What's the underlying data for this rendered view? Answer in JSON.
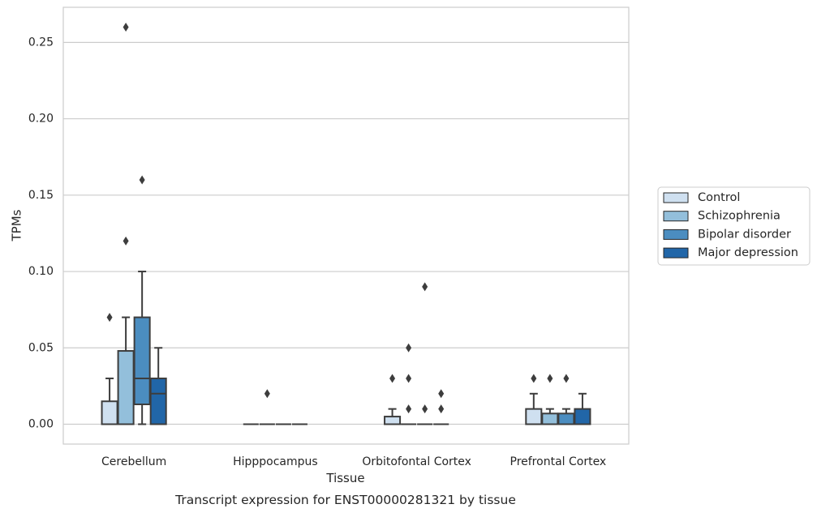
{
  "chart_data": {
    "type": "box",
    "title": "",
    "caption": "Transcript expression for ENST00000281321 by tissue",
    "xlabel": "Tissue",
    "ylabel": "TPMs",
    "ylim": [
      -0.013,
      0.273
    ],
    "yticks": [
      "0.00",
      "0.05",
      "0.10",
      "0.15",
      "0.20",
      "0.25"
    ],
    "ytick_values": [
      0,
      0.05,
      0.1,
      0.15,
      0.2,
      0.25
    ],
    "grid": "horizontal",
    "legend_position": "right",
    "categories": [
      "Cerebellum",
      "Hipppocampus",
      "Orbitofontal Cortex",
      "Prefrontal Cortex"
    ],
    "series": [
      {
        "name": "Control",
        "color": "#cfe0f0",
        "boxes": [
          {
            "whisker_low": 0,
            "q1": 0,
            "median": 0,
            "q3": 0.015,
            "whisker_high": 0.03,
            "outliers": [
              0.07
            ]
          },
          {
            "whisker_low": 0,
            "q1": 0,
            "median": 0,
            "q3": 0,
            "whisker_high": 0,
            "outliers": []
          },
          {
            "whisker_low": 0,
            "q1": 0,
            "median": 0,
            "q3": 0.005,
            "whisker_high": 0.01,
            "outliers": [
              0.03
            ]
          },
          {
            "whisker_low": 0,
            "q1": 0,
            "median": 0,
            "q3": 0.01,
            "whisker_high": 0.02,
            "outliers": [
              0.03
            ]
          }
        ]
      },
      {
        "name": "Schizophrenia",
        "color": "#93bfdb",
        "boxes": [
          {
            "whisker_low": 0,
            "q1": 0,
            "median": 0,
            "q3": 0.048,
            "whisker_high": 0.07,
            "outliers": [
              0.12,
              0.26
            ]
          },
          {
            "whisker_low": 0,
            "q1": 0,
            "median": 0,
            "q3": 0,
            "whisker_high": 0,
            "outliers": [
              0.02
            ]
          },
          {
            "whisker_low": 0,
            "q1": 0,
            "median": 0,
            "q3": 0,
            "whisker_high": 0,
            "outliers": [
              0.01,
              0.03,
              0.05
            ]
          },
          {
            "whisker_low": 0,
            "q1": 0,
            "median": 0,
            "q3": 0.007,
            "whisker_high": 0.01,
            "outliers": [
              0.03
            ]
          }
        ]
      },
      {
        "name": "Bipolar disorder",
        "color": "#4b8dc0",
        "boxes": [
          {
            "whisker_low": 0,
            "q1": 0.013,
            "median": 0.03,
            "q3": 0.07,
            "whisker_high": 0.1,
            "outliers": [
              0.16
            ]
          },
          {
            "whisker_low": 0,
            "q1": 0,
            "median": 0,
            "q3": 0,
            "whisker_high": 0,
            "outliers": []
          },
          {
            "whisker_low": 0,
            "q1": 0,
            "median": 0,
            "q3": 0,
            "whisker_high": 0,
            "outliers": [
              0.01,
              0.09
            ]
          },
          {
            "whisker_low": 0,
            "q1": 0,
            "median": 0,
            "q3": 0.007,
            "whisker_high": 0.01,
            "outliers": [
              0.03
            ]
          }
        ]
      },
      {
        "name": "Major depression",
        "color": "#2166a8",
        "boxes": [
          {
            "whisker_low": 0,
            "q1": 0,
            "median": 0.02,
            "q3": 0.03,
            "whisker_high": 0.05,
            "outliers": []
          },
          {
            "whisker_low": 0,
            "q1": 0,
            "median": 0,
            "q3": 0,
            "whisker_high": 0,
            "outliers": []
          },
          {
            "whisker_low": 0,
            "q1": 0,
            "median": 0,
            "q3": 0,
            "whisker_high": 0,
            "outliers": [
              0.01,
              0.02
            ]
          },
          {
            "whisker_low": 0,
            "q1": 0,
            "median": 0,
            "q3": 0.01,
            "whisker_high": 0.02,
            "outliers": []
          }
        ]
      }
    ]
  }
}
